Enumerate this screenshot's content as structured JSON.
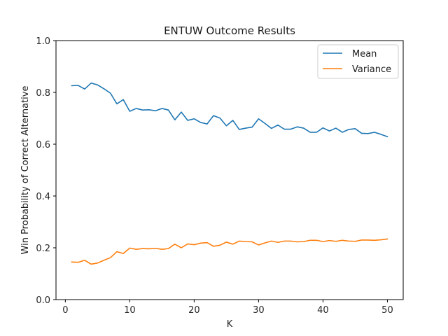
{
  "chart_data": {
    "type": "line",
    "title": "ENTUW Outcome Results",
    "xlabel": "K",
    "ylabel": "Win Probability of Correct Alternative",
    "xlim": [
      -1.45,
      52.45
    ],
    "ylim": [
      0.0,
      1.0
    ],
    "xticks": [
      0,
      10,
      20,
      30,
      40,
      50
    ],
    "yticks": [
      0.0,
      0.2,
      0.4,
      0.6,
      0.8,
      1.0
    ],
    "xtick_labels": [
      "0",
      "10",
      "20",
      "30",
      "40",
      "50"
    ],
    "ytick_labels": [
      "0.0",
      "0.2",
      "0.4",
      "0.6",
      "0.8",
      "1.0"
    ],
    "grid": false,
    "legend_position": "top-right",
    "x": [
      1,
      2,
      3,
      4,
      5,
      6,
      7,
      8,
      9,
      10,
      11,
      12,
      13,
      14,
      15,
      16,
      17,
      18,
      19,
      20,
      21,
      22,
      23,
      24,
      25,
      26,
      27,
      28,
      29,
      30,
      31,
      32,
      33,
      34,
      35,
      36,
      37,
      38,
      39,
      40,
      41,
      42,
      43,
      44,
      45,
      46,
      47,
      48,
      49,
      50
    ],
    "series": [
      {
        "name": "Mean",
        "color": "#1f77b4",
        "values": [
          0.826,
          0.827,
          0.813,
          0.836,
          0.829,
          0.814,
          0.797,
          0.756,
          0.772,
          0.727,
          0.738,
          0.732,
          0.733,
          0.729,
          0.738,
          0.732,
          0.694,
          0.724,
          0.692,
          0.698,
          0.684,
          0.678,
          0.71,
          0.701,
          0.671,
          0.692,
          0.657,
          0.662,
          0.666,
          0.698,
          0.68,
          0.661,
          0.674,
          0.658,
          0.658,
          0.667,
          0.662,
          0.646,
          0.646,
          0.663,
          0.651,
          0.662,
          0.646,
          0.657,
          0.66,
          0.642,
          0.641,
          0.646,
          0.638,
          0.629
        ]
      },
      {
        "name": "Variance",
        "color": "#ff7f0e",
        "values": [
          0.145,
          0.144,
          0.152,
          0.137,
          0.141,
          0.152,
          0.162,
          0.185,
          0.178,
          0.199,
          0.194,
          0.197,
          0.196,
          0.198,
          0.194,
          0.197,
          0.214,
          0.2,
          0.215,
          0.212,
          0.218,
          0.22,
          0.206,
          0.21,
          0.222,
          0.214,
          0.226,
          0.224,
          0.223,
          0.211,
          0.219,
          0.226,
          0.221,
          0.226,
          0.226,
          0.223,
          0.224,
          0.229,
          0.229,
          0.224,
          0.228,
          0.225,
          0.229,
          0.226,
          0.225,
          0.23,
          0.23,
          0.229,
          0.231,
          0.234
        ]
      }
    ]
  }
}
